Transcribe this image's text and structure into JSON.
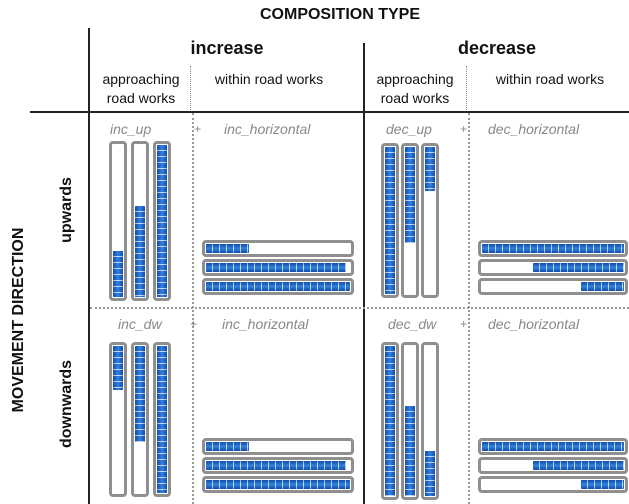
{
  "title": "COMPOSITION TYPE",
  "y_axis_label": "MOVEMENT DIRECTION",
  "groups": [
    {
      "label": "increase",
      "sub": [
        "approaching road works",
        "within road works"
      ]
    },
    {
      "label": "decrease",
      "sub": [
        "approaching road works",
        "within road works"
      ]
    }
  ],
  "rows": [
    {
      "label": "upwards"
    },
    {
      "label": "downwards"
    }
  ],
  "plus_sign": "+",
  "cells": [
    {
      "row": 0,
      "col": 0,
      "left_caption": "inc_up",
      "right_caption": "inc_horizontal",
      "vertical_fill": [
        0.3,
        0.6,
        1.0
      ],
      "vertical_from": "bottom",
      "horizontal_fill": [
        0.3,
        0.97,
        1.0
      ],
      "horizontal_from": "left"
    },
    {
      "row": 0,
      "col": 1,
      "left_caption": "dec_up",
      "right_caption": "dec_horizontal",
      "vertical_fill": [
        1.0,
        0.65,
        0.3
      ],
      "vertical_from": "top",
      "horizontal_fill": [
        1.0,
        0.64,
        0.3
      ],
      "horizontal_from": "right"
    },
    {
      "row": 1,
      "col": 0,
      "left_caption": "inc_dw",
      "right_caption": "inc_horizontal",
      "vertical_fill": [
        0.3,
        0.65,
        1.0
      ],
      "vertical_from": "top",
      "horizontal_fill": [
        0.3,
        0.97,
        1.0
      ],
      "horizontal_from": "left"
    },
    {
      "row": 1,
      "col": 1,
      "left_caption": "dec_dw",
      "right_caption": "dec_horizontal",
      "vertical_fill": [
        1.0,
        0.6,
        0.3
      ],
      "vertical_from": "bottom",
      "horizontal_fill": [
        1.0,
        0.64,
        0.3
      ],
      "horizontal_from": "right"
    }
  ],
  "colors": {
    "fill": "#1a6ad8",
    "bar_border": "#8f8f8f",
    "grid": "#222222",
    "caption": "#888888"
  }
}
